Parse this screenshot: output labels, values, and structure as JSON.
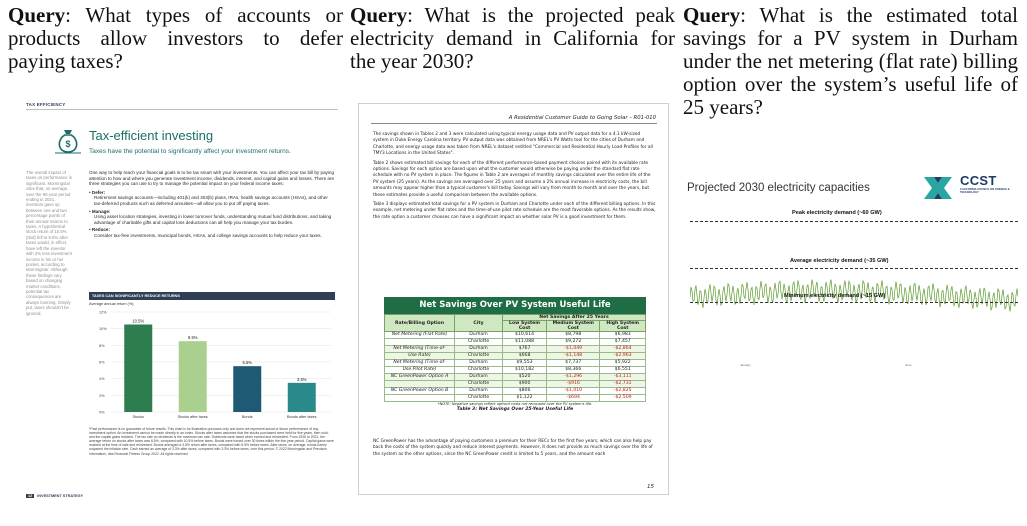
{
  "queries": [
    {
      "label": "Query",
      "text": ": What types of accounts or products allow investors to defer paying taxes?"
    },
    {
      "label": "Query",
      "text": ": What is the projected peak electricity demand in California for the year 2030?"
    },
    {
      "label": "Query",
      "text": ": What is the estimated total savings for a PV system in Durham under the net metering (flat rate) billing option over the system’s useful life of 25 years?"
    }
  ],
  "doc1": {
    "section_tag": "TAX EFFICIENCY",
    "title": "Tax-efficient investing",
    "subtitle": "Taxes have the potential to significantly affect your investment returns.",
    "sidebar": "The overall impact of taxes on performance is significant. Morningstar cites that, on average, over the 95-year period ending in 2021, investors gave up between one and two percentage points of their annual returns to taxes. A hypothetical stock return of 10.5% (Ibid) fell to 8.5% after taxes would, in effect, have left the investor with 2% less investment income in his or her pocket, according to Morningstar. Although these findings vary based on changing market conditions, potential tax consequences are always looming. Simply put, taxes shouldn't be ignored.",
    "intro": "One way to help reach your financial goals is to be tax smart with your investments. You can affect your tax bill by paying attention to how and where you generate investment income, dividends, interest, and capital gains and losses. There are three strategies you can use to try to manage the potential impact on your federal income taxes:",
    "bullets": [
      {
        "head": "• Defer:",
        "text": "Retirement savings accounts—including 401(k) and 403(b) plans, IRAs, health savings accounts (HSAs), and other tax-deferred products such as deferred annuities—all allow you to put off paying taxes."
      },
      {
        "head": "• Manage:",
        "text": "Using asset location strategies, investing in lower turnover funds, understanding mutual fund distributions, and taking advantage of charitable gifts and capital loss deductions can all help you manage your tax burden."
      },
      {
        "head": "• Reduce:",
        "text": "Consider tax-free investments, municipal bonds, HSAs, and college savings accounts to help reduce your taxes."
      }
    ],
    "chart_bar_title": "TAXES CAN SIGNIFICANTLY REDUCE RETURNS",
    "chart_note": "Average annual return (%)",
    "footnote": "*Past performance is no guarantee of future results. This chart is for illustrative purposes only and does not represent actual or future performance of any investment option. An investment cannot be made directly in an index. Stocks after taxes assumes that the stocks purchased were held for five years, then sold, and the capital gains realized. The tax rate on dividends is the maximum tax rate. Dividends were taxed when earned and reinvested. From 1926 to 2021, the average return on stocks after taxes was 8.5%, compared with 10.5% before taxes. Bonds were turned over 30 times within the five-year period. Capital gains were realized at the time of sale and reinvested. Bonds averaged a 3.5% return after taxes, compared with 5.5% before taxes. After taxes, on average, bonds barely outpaced the inflation rate. Cash earned an average of 3.3% after taxes, compared with 3.3% before taxes, over this period. © 2022 Morningstar and Precision Information, dba Financial Fitness Group 2022. All rights reserved.",
    "page_number": "12",
    "page_label": "INVESTMENT STRATEGY"
  },
  "chart_data": {
    "type": "bar",
    "categories": [
      "Stocks",
      "Stocks after taxes",
      "Bonds",
      "Bonds after taxes"
    ],
    "values": [
      10.5,
      8.5,
      5.5,
      3.5
    ],
    "value_labels": [
      "10.5%",
      "8.5%",
      "5.5%",
      "3.5%"
    ],
    "title": "TAXES CAN SIGNIFICANTLY REDUCE RETURNS",
    "ylabel": "Average annual return (%)",
    "yticks": [
      "12%",
      "10%",
      "8%",
      "6%",
      "4%",
      "2%",
      "0%"
    ],
    "ylim": [
      0,
      12
    ],
    "colors": [
      "#2e7d4f",
      "#a9d08e",
      "#1e5a73",
      "#2a8a8a"
    ],
    "grid": true
  },
  "doc2": {
    "header": "A Residential Customer Guide to Going Solar – R01-010",
    "paras": [
      "The savings shown in Tables 2 and 3 were calculated using typical energy usage data and PV output data for a 4.1 kW-sized system in Duke Energy Carolina territory. PV output data was obtained from NREL's PV Watts tool for the cities of Durham and Charlotte, and energy usage data was taken from NREL's dataset entitled \"Commercial and Residential Hourly Load Profiles for all TMY3 Locations in the United States\".",
      "Table 2 shows estimated bill savings for each of the different performance-based payment choices paired with its available rate options. Savings for each option are based upon what the customer would otherwise be paying under the standard flat rate schedule with no PV system in place. The figures in Table 2 are averages of monthly savings calculated over the entire life of the PV system (25 years). As the savings are averaged over 25 years and assume a 2% annual increase in electricity costs, the bill amounts may appear higher than a typical customer's bill today. Savings will vary from month to month and over the years, but these estimates provide a useful comparison between the available options.",
      "Table 3 displays estimated total savings for a PV system in Durham and Charlotte under each of the different billing options. In this example, net metering under flat rates and the time-of-use pilot rate schedule are the most favorable options. As the results show, the rate option a customer chooses can have a significant impact on whether solar PV is a good investment for them."
    ],
    "table_title": "Net Savings Over PV System Useful Life",
    "col_rate": "Rate/Billing Option",
    "col_city": "City",
    "col_group": "Net Savings After 25 Years",
    "col_low": "Low System Cost",
    "col_med": "Medium System Cost",
    "col_high": "High System Cost",
    "rows": [
      {
        "opt": "Net Metering (Flat Rate)",
        "city": "Durham",
        "low": "$10,614",
        "med": "$8,798",
        "high": "$6,983"
      },
      {
        "opt": "",
        "city": "Charlotte",
        "low": "$11,088",
        "med": "$9,272",
        "high": "$7,457"
      },
      {
        "opt": "Net Metering (Time-of-",
        "city": "Durham",
        "low": "$767",
        "med": "-$1,049",
        "high": "-$2,864"
      },
      {
        "opt": "Use Rate)",
        "city": "Charlotte",
        "low": "$668",
        "med": "-$1,148",
        "high": "-$2,963"
      },
      {
        "opt": "Net Metering (Time-of-",
        "city": "Durham",
        "low": "$9,553",
        "med": "$7,737",
        "high": "$5,922"
      },
      {
        "opt": "Use Pilot Rate)",
        "city": "Charlotte",
        "low": "$10,182",
        "med": "$8,366",
        "high": "$6,551"
      },
      {
        "opt": "NC GreenPower Option A",
        "city": "Durham",
        "low": "$520",
        "med": "-$1,296",
        "high": "-$3,111"
      },
      {
        "opt": "",
        "city": "Charlotte",
        "low": "$900",
        "med": "-$916",
        "high": "-$2,731"
      },
      {
        "opt": "NC GreenPower Option B",
        "city": "Durham",
        "low": "$806",
        "med": "-$1,010",
        "high": "-$2,825"
      },
      {
        "opt": "",
        "city": "Charlotte",
        "low": "$1,122",
        "med": "-$694",
        "high": "-$2,509"
      }
    ],
    "table_note": "*NOTE: Negative savings reflect upfront costs not recouped over the PV system's life.",
    "table_caption": "Table 3: Net Savings Over 25-Year Useful Life",
    "para_after": "NC GreenPower has the advantage of paying customers a premium for their RECs for the first five years, which can also help pay back the costs of the system quickly and reduce interest payments. However, it does not provide as much savings over the life of the system as the other options, since the NC GreenPower credit is limited to 5 years, and the amount each",
    "page_number": "15"
  },
  "doc3": {
    "title": "Projected 2030 electricity capacities",
    "brand": "CCST",
    "brand_sub": "CALIFORNIA COUNCIL ON SCIENCE & TECHNOLOGY",
    "peak_label": "Peak electricity demand (~60 GW)",
    "avg_label": "Average electricity demand (~35 GW)",
    "min_label": "Minimum electricity demand (~15 GW)",
    "x_start": "January",
    "x_end": "June",
    "line_color": "#5c9a2e"
  }
}
